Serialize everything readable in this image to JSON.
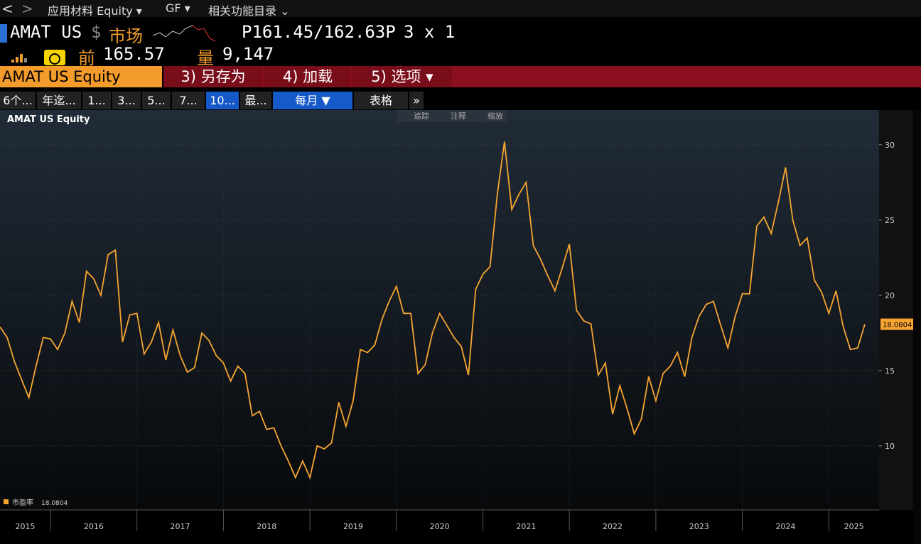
{
  "nav": {
    "items": [
      "应用材料 Equity ▾",
      "GF ▾",
      "相关功能目录 ⌄"
    ]
  },
  "quote": {
    "ticker": "AMAT US",
    "currency": "$",
    "market": "市场",
    "price": "P161.45/162.63P",
    "size": "3 x 1",
    "prev_label": "前",
    "prev": "165.57",
    "volume_label": "量",
    "volume": "9,147"
  },
  "menu": {
    "security": "AMAT US Equity",
    "items": [
      "3) 另存为",
      "4) 加载",
      "5) 选项 ▾"
    ]
  },
  "tabs": {
    "ranges": [
      "6个...",
      "年迄...",
      "1...",
      "3...",
      "5...",
      "7...",
      "10...",
      "最..."
    ],
    "period": "每月 ▼",
    "table": "表格",
    "more": "»"
  },
  "tools": [
    "追踪",
    "注释",
    "缩放"
  ],
  "chart_data": {
    "type": "line",
    "title": "AMAT US Equity",
    "categories": [
      "2015",
      null,
      null,
      null,
      null,
      null,
      null,
      "2016",
      null,
      null,
      null,
      null,
      null,
      null,
      null,
      null,
      null,
      null,
      null,
      "2017",
      null,
      null,
      null,
      null,
      null,
      null,
      null,
      null,
      null,
      null,
      null,
      "2018",
      null,
      null,
      null,
      null,
      null,
      null,
      null,
      null,
      null,
      null,
      null,
      "2019",
      null,
      null,
      null,
      null,
      null,
      null,
      null,
      null,
      null,
      null,
      null,
      "2020",
      null,
      null,
      null,
      null,
      null,
      null,
      null,
      null,
      null,
      null,
      null,
      "2021",
      null,
      null,
      null,
      null,
      null,
      null,
      null,
      null,
      null,
      null,
      null,
      "2022",
      null,
      null,
      null,
      null,
      null,
      null,
      null,
      null,
      null,
      null,
      null,
      "2023",
      null,
      null,
      null,
      null,
      null,
      null,
      null,
      null,
      null,
      null,
      null,
      "2024",
      null,
      null,
      null,
      null,
      null,
      null,
      null,
      null,
      null,
      null,
      null,
      "2025",
      null,
      null,
      null,
      null,
      null
    ],
    "series": [
      {
        "name": "市盈率",
        "color": "#f7a531",
        "values": [
          17.9,
          17.2,
          15.6,
          14.4,
          13.2,
          15.3,
          17.2,
          17.1,
          16.4,
          17.5,
          19.6,
          18.2,
          21.6,
          21.1,
          20.0,
          22.7,
          23.0,
          16.9,
          18.7,
          18.8,
          16.1,
          16.9,
          18.2,
          15.7,
          17.7,
          16.0,
          14.9,
          15.2,
          17.5,
          17.0,
          16.0,
          15.5,
          14.3,
          15.3,
          14.8,
          12.0,
          12.3,
          11.1,
          11.2,
          10.0,
          9.0,
          7.9,
          9.0,
          7.9,
          10.0,
          9.8,
          10.2,
          12.9,
          11.3,
          13.0,
          16.4,
          16.2,
          16.7,
          18.4,
          19.6,
          20.6,
          18.8,
          18.8,
          14.8,
          15.4,
          17.5,
          18.8,
          18.0,
          17.2,
          16.6,
          14.7,
          20.4,
          21.4,
          21.9,
          26.7,
          30.2,
          25.7,
          26.7,
          27.5,
          23.3,
          22.4,
          21.3,
          20.3,
          21.8,
          23.4,
          19.0,
          18.3,
          18.1,
          14.7,
          15.5,
          12.1,
          14.0,
          12.5,
          10.8,
          11.8,
          14.6,
          13.0,
          14.8,
          15.3,
          16.2,
          14.6,
          17.2,
          18.6,
          19.4,
          19.6,
          18.0,
          16.5,
          18.6,
          20.1,
          20.1,
          24.6,
          25.2,
          24.1,
          26.2,
          28.5,
          25.0,
          23.3,
          23.8,
          21.0,
          20.2,
          18.8,
          20.3,
          17.9,
          16.4,
          16.5,
          18.0804
        ]
      }
    ],
    "ylim": [
      5.75,
      32.3
    ],
    "yticks": [
      10,
      15,
      20,
      25,
      30
    ],
    "grid": true
  }
}
